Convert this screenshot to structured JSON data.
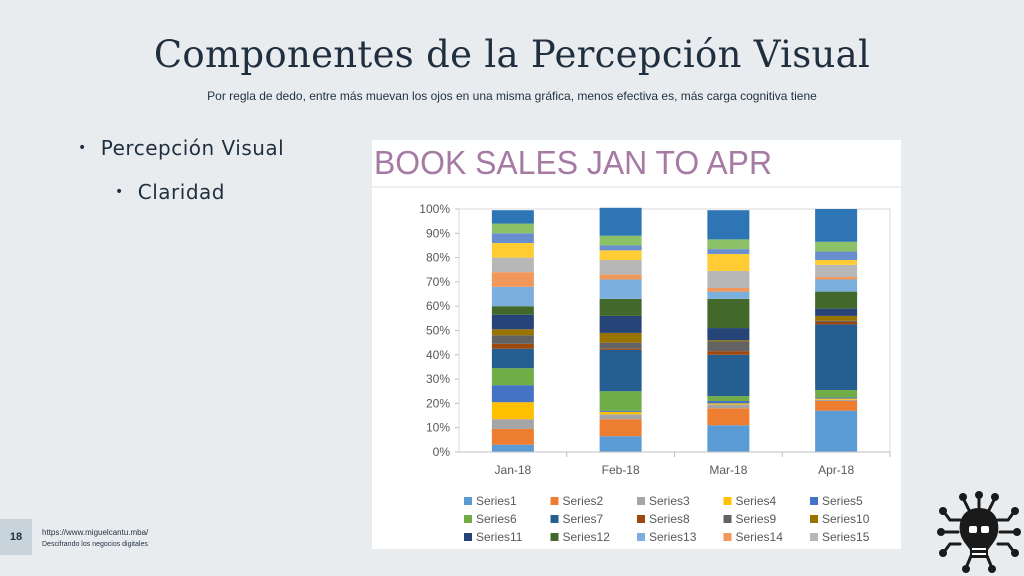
{
  "slide": {
    "title": "Componentes de la Percepción Visual",
    "subtitle": "Por regla de dedo, entre más muevan los ojos en una misma gráfica, menos efectiva es, más carga cognitiva tiene",
    "bullets": [
      "Percepción Visual",
      "Claridad"
    ],
    "page_number": "18",
    "footer_url": "https://www.miguelcantu.mba/",
    "footer_tagline": "Descifrando los negocios digitales"
  },
  "chart_data": {
    "type": "bar",
    "stacked": true,
    "percent": true,
    "title": "BOOK SALES JAN TO APR",
    "categories": [
      "Jan-18",
      "Feb-18",
      "Mar-18",
      "Apr-18"
    ],
    "ylim": [
      0,
      100
    ],
    "yticks": [
      "0%",
      "10%",
      "20%",
      "30%",
      "40%",
      "50%",
      "60%",
      "70%",
      "80%",
      "90%",
      "100%"
    ],
    "legend_position": "bottom",
    "grid": false,
    "series": [
      {
        "name": "Series1",
        "color": "#5b9bd5",
        "values": [
          3,
          6.5,
          11,
          17
        ]
      },
      {
        "name": "Series2",
        "color": "#ed7d31",
        "values": [
          6.5,
          7,
          7,
          4
        ]
      },
      {
        "name": "Series3",
        "color": "#a5a5a5",
        "values": [
          4,
          2,
          1.5,
          0.5
        ]
      },
      {
        "name": "Series4",
        "color": "#ffc000",
        "values": [
          7,
          1,
          0.5,
          0.5
        ]
      },
      {
        "name": "Series5",
        "color": "#4472c4",
        "values": [
          7,
          0.5,
          1,
          0.5
        ]
      },
      {
        "name": "Series6",
        "color": "#70ad47",
        "values": [
          7,
          8,
          2,
          3
        ]
      },
      {
        "name": "Series7",
        "color": "#255e91",
        "values": [
          8,
          17,
          17,
          27
        ]
      },
      {
        "name": "Series8",
        "color": "#9e480e",
        "values": [
          2,
          0.5,
          1.5,
          1
        ]
      },
      {
        "name": "Series9",
        "color": "#636363",
        "values": [
          3.5,
          2.5,
          4,
          0.5
        ]
      },
      {
        "name": "Series10",
        "color": "#997300",
        "values": [
          2.5,
          4,
          0.5,
          2
        ]
      },
      {
        "name": "Series11",
        "color": "#264478",
        "values": [
          6,
          7,
          5,
          3
        ]
      },
      {
        "name": "Series12",
        "color": "#43682b",
        "values": [
          3.5,
          7,
          12,
          7
        ]
      },
      {
        "name": "Series13",
        "color": "#7cafdd",
        "values": [
          8,
          8,
          3,
          5
        ]
      },
      {
        "name": "Series14",
        "color": "#f1975a",
        "values": [
          6,
          2,
          1.5,
          1
        ]
      },
      {
        "name": "Series15",
        "color": "#b7b7b7",
        "values": [
          6,
          6,
          7,
          5
        ]
      },
      {
        "name": "",
        "color": "#ffcd33",
        "values": [
          6,
          4,
          7,
          2
        ]
      },
      {
        "name": "",
        "color": "#698ed0",
        "values": [
          4,
          2,
          2,
          3.5
        ]
      },
      {
        "name": "",
        "color": "#8cc168",
        "values": [
          4,
          4,
          4,
          4
        ]
      },
      {
        "name": "",
        "color": "#2e75b6",
        "values": [
          5.5,
          11.5,
          12,
          13.5
        ]
      }
    ]
  }
}
